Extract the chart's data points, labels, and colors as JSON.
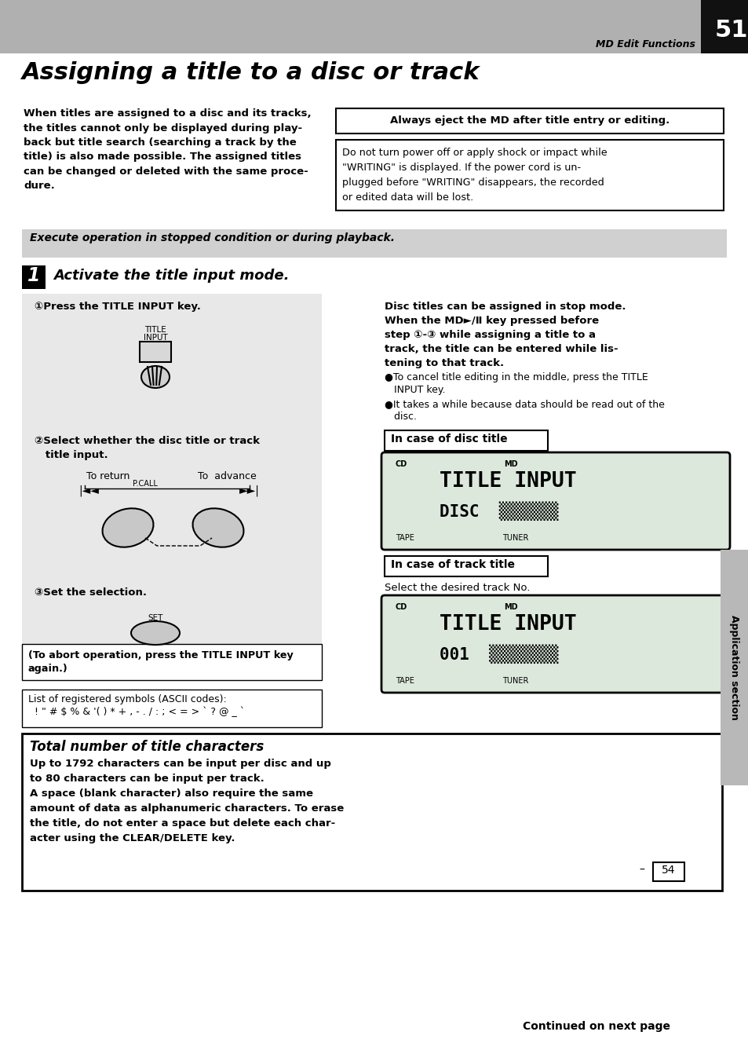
{
  "page_bg": "#ffffff",
  "header_bg": "#b0b0b0",
  "header_number": "51",
  "header_label": "MD Edit Functions",
  "title": "Assigning a title to a disc or track",
  "body_left_text": [
    "When titles are assigned to a disc and its tracks,",
    "the titles cannot only be displayed during play-",
    "back but title search (searching a track by the",
    "title) is also made possible. The assigned titles",
    "can be changed or deleted with the same proce-",
    "dure."
  ],
  "warning_box1": "Always eject the MD after title entry or editing.",
  "warning_box2_lines": [
    "Do not turn power off or apply shock or impact while",
    "\"WRITING\" is displayed. If the power cord is un-",
    "plugged before \"WRITING\" disappears, the recorded",
    "or edited data will be lost."
  ],
  "grey_bar_text": "Execute operation in stopped condition or during playback.",
  "step1_label": "1",
  "step1_text": "Activate the title input mode.",
  "substep1_text": "①Press the TITLE INPUT key.",
  "substep2_line1": "②Select whether the disc title or track",
  "substep2_line2": "   title input.",
  "to_return": "To return",
  "to_advance": "To  advance",
  "substep3_text": "③Set the selection.",
  "abort_lines": [
    "(To abort operation, press the TITLE INPUT key",
    "again.)"
  ],
  "list_title": "List of registered symbols (ASCII codes):",
  "list_symbols": "  ! \" # $ % & '( ) * + , - . / : ; < = > ` ? @ _ `",
  "disc_note_lines": [
    "Disc titles can be assigned in stop mode.",
    "When the MD►/Ⅱ key pressed before",
    "step ①-③ while assigning a title to a",
    "track, the title can be entered while lis-",
    "tening to that track."
  ],
  "bullet1_lines": [
    "●To cancel title editing in the middle, press the TITLE",
    "   INPUT key."
  ],
  "bullet2_lines": [
    "●It takes a while because data should be read out of the",
    "   disc."
  ],
  "in_case_disc": "In case of disc title",
  "in_case_track": "In case of track title",
  "track_note": "Select the desired track No.",
  "total_title": "Total number of title characters",
  "total_body": [
    "Up to 1792 characters can be input per disc and up",
    "to 80 characters can be input per track.",
    "A space (blank character) also require the same",
    "amount of data as alphanumeric characters. To erase",
    "the title, do not enter a space but delete each char-",
    "acter using the CLEAR/DELETE key."
  ],
  "continued": "Continued on next page",
  "app_section": "Application section",
  "page_num_ref": "54"
}
